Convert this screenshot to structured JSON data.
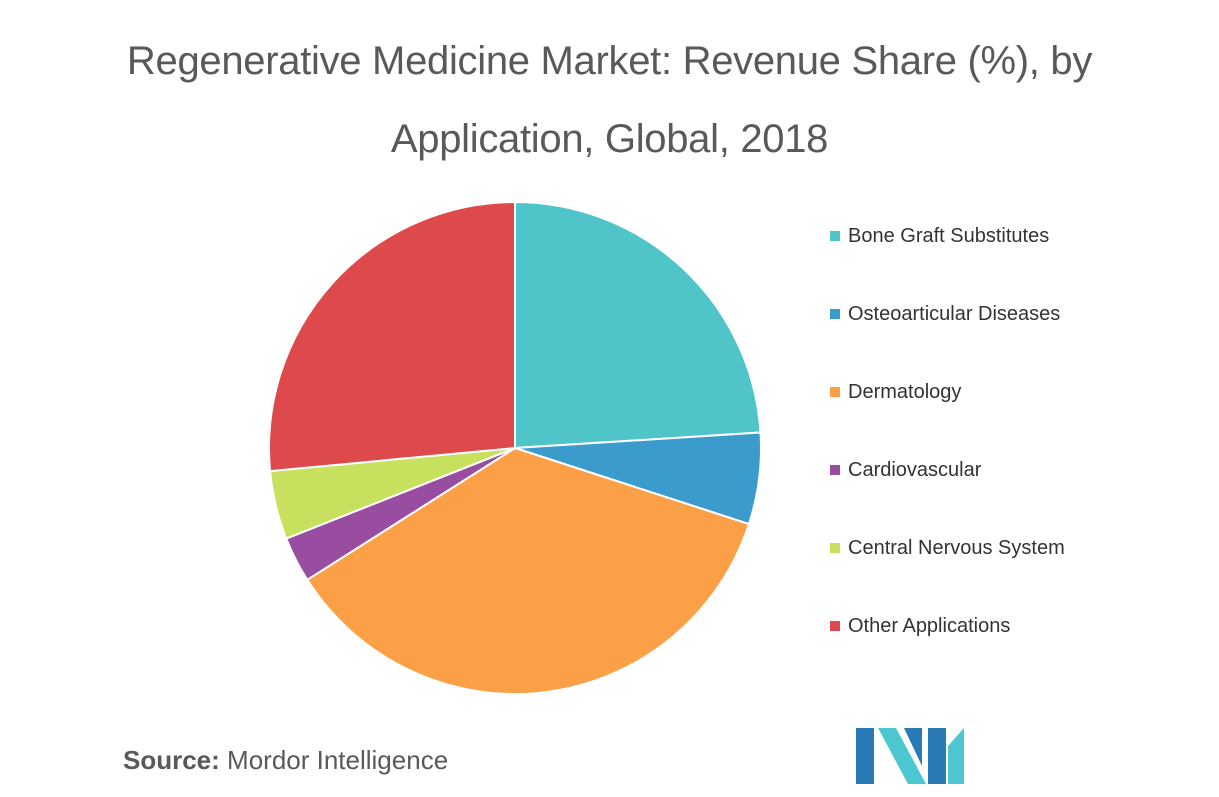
{
  "title_line1": "Regenerative Medicine Market: Revenue Share (%), by",
  "title_line2": "Application, Global, 2018",
  "source": {
    "label": "Source:",
    "text": " Mordor Intelligence"
  },
  "logo": {
    "colors": [
      "#2a7bb5",
      "#4cc7cf"
    ]
  },
  "chart_data": {
    "type": "pie",
    "title": "Regenerative Medicine Market: Revenue Share (%), by Application, Global, 2018",
    "legend_position": "right",
    "slices": [
      {
        "label": "Bone Graft Substitutes",
        "value": 24.0,
        "color": "#4fc4c9"
      },
      {
        "label": "Osteoarticular Diseases",
        "value": 6.0,
        "color": "#3b9bcc"
      },
      {
        "label": "Dermatology",
        "value": 36.0,
        "color": "#fba046"
      },
      {
        "label": "Cardiovascular",
        "value": 3.0,
        "color": "#984da1"
      },
      {
        "label": "Central Nervous System",
        "value": 4.5,
        "color": "#c7e05e"
      },
      {
        "label": "Other Applications",
        "value": 26.5,
        "color": "#de4a4b"
      }
    ]
  }
}
